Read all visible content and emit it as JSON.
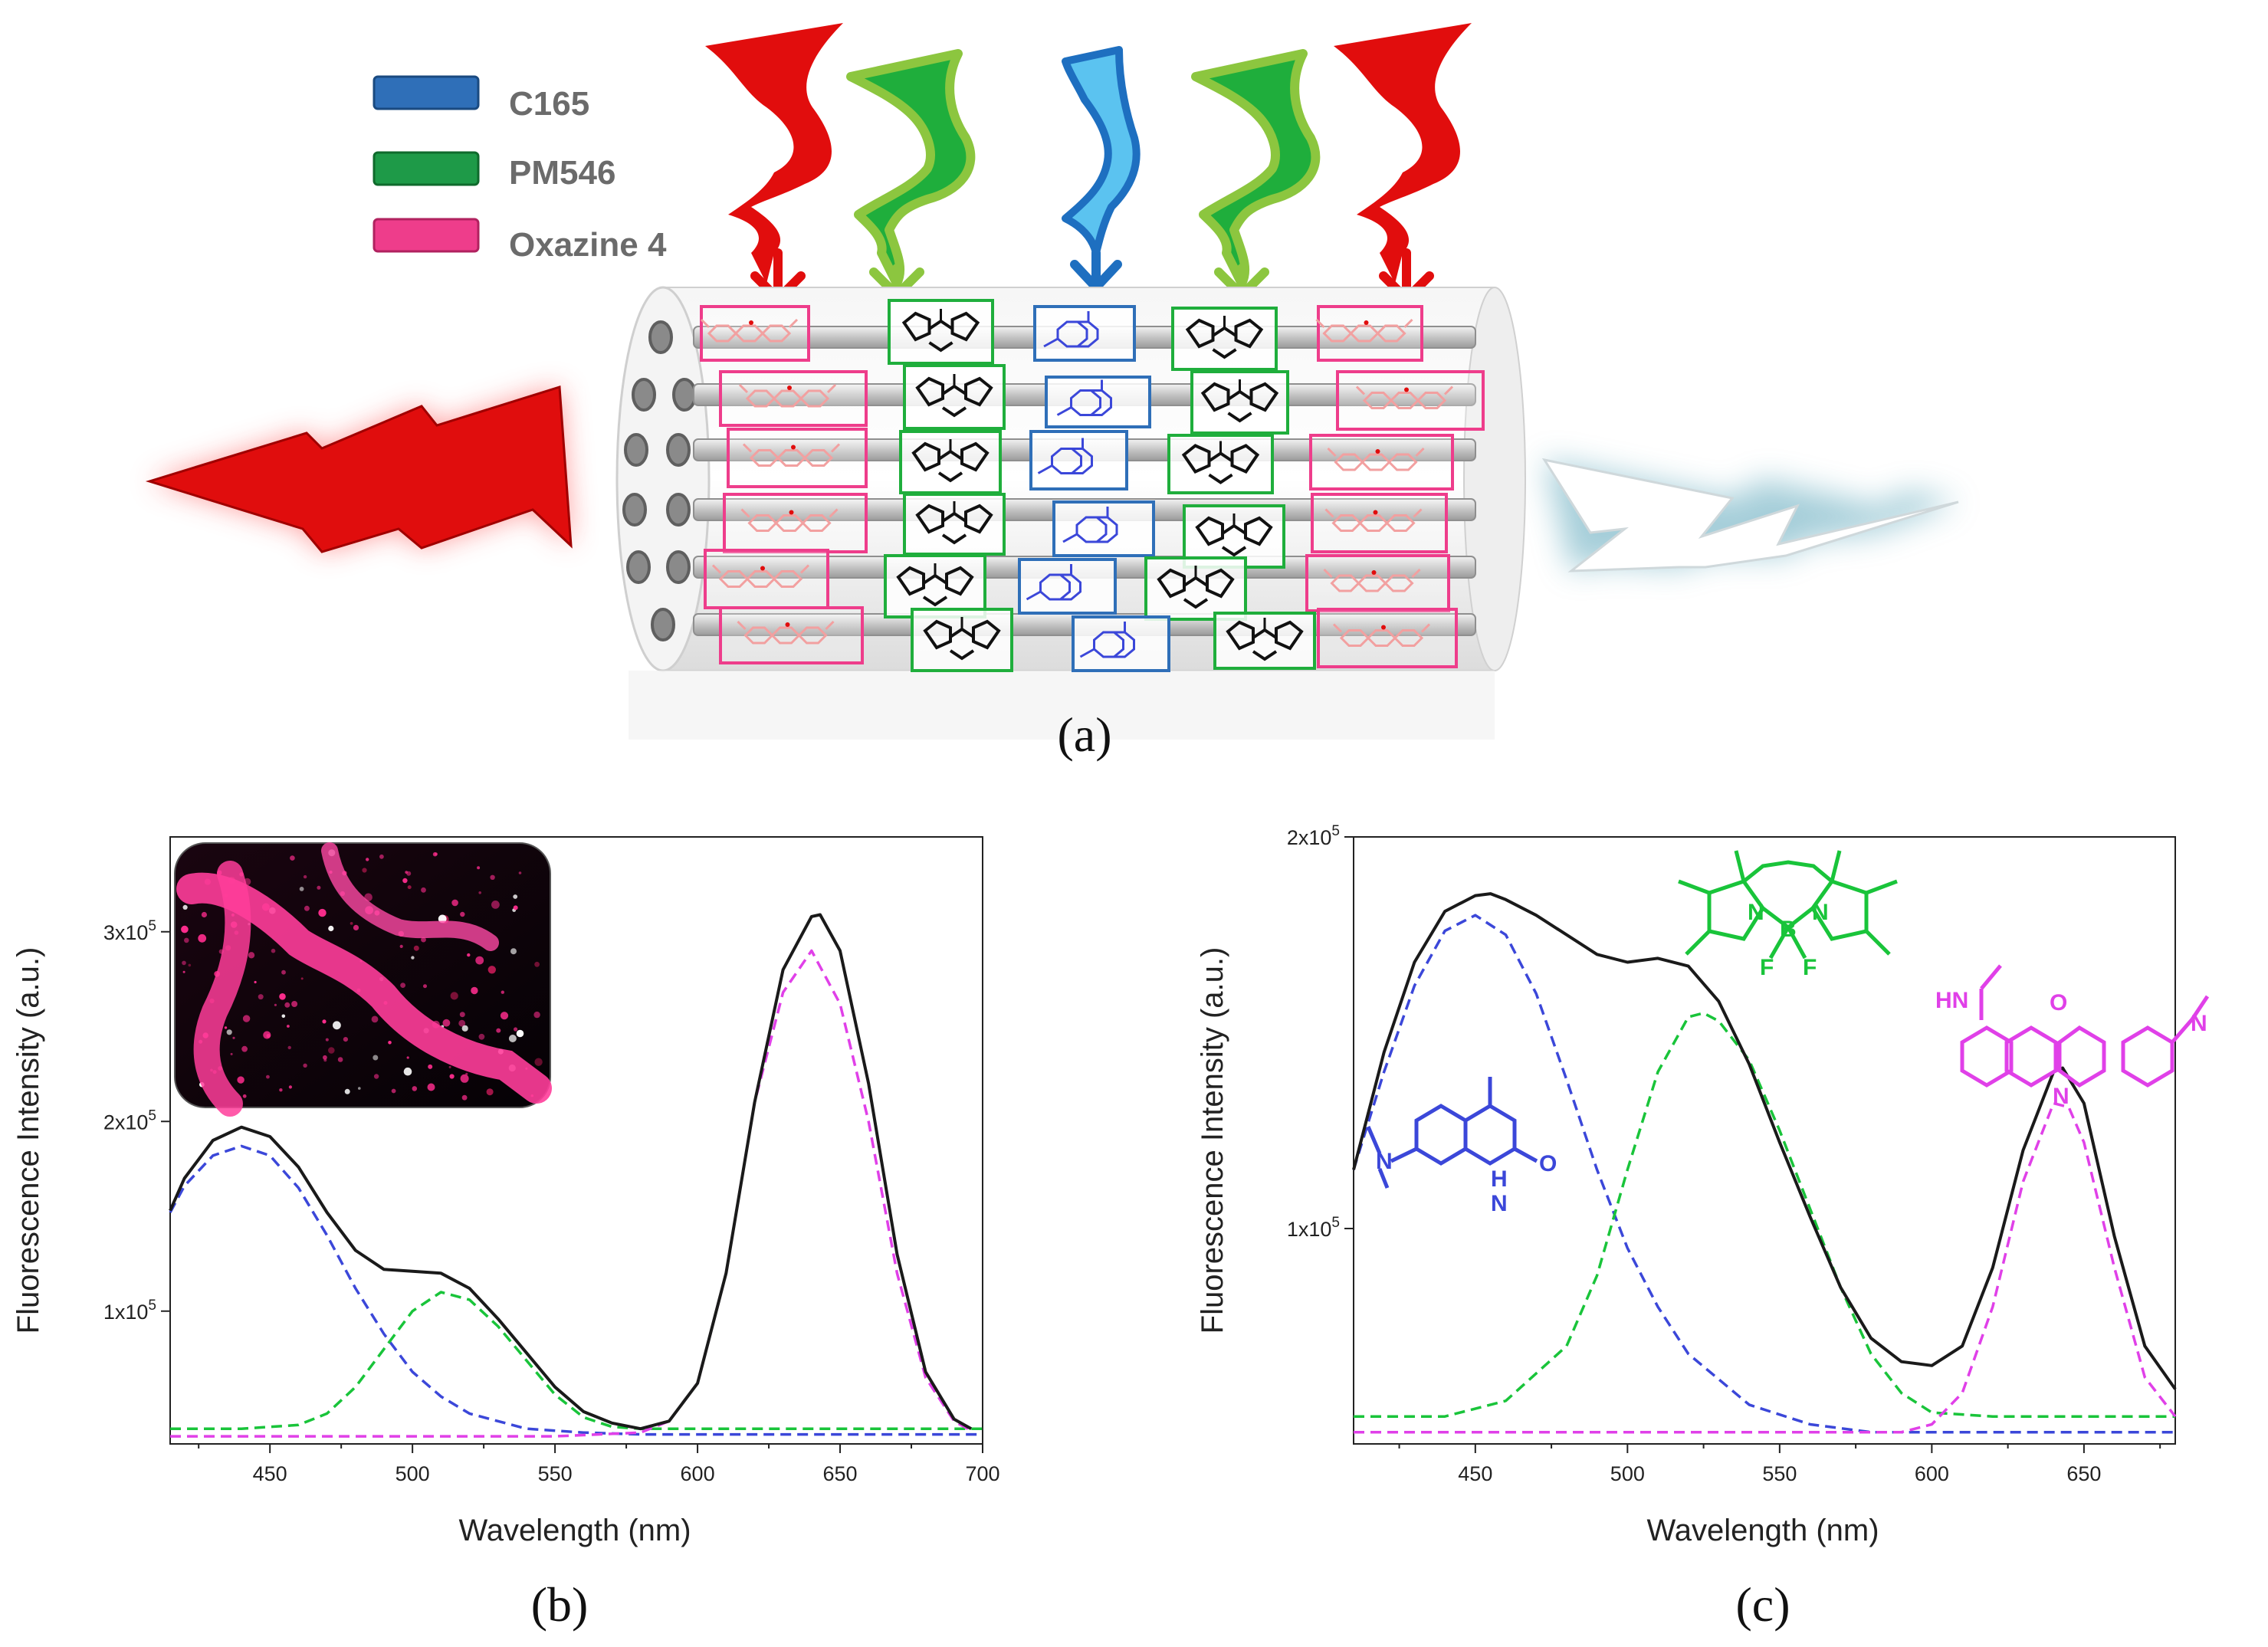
{
  "legend": [
    {
      "label": "C165",
      "color": "#2f6fb8"
    },
    {
      "label": "PM546",
      "color": "#1e9a48"
    },
    {
      "label": "Oxazine 4",
      "color": "#ee3d8b"
    }
  ],
  "panel_labels": {
    "a": "(a)",
    "b": "(b)",
    "c": "(c)"
  },
  "molecule_labels": {
    "bodipy": {
      "b": "B",
      "n1": "N",
      "n2": "N",
      "f1": "F",
      "f2": "F"
    },
    "oxazine": {
      "hn": "HN",
      "o": "O",
      "n_ring": "N",
      "n_imine": "N"
    },
    "coumarin": {
      "n_amine": "N",
      "nh": "H",
      "n_ring": "N",
      "o": "O"
    }
  },
  "colors": {
    "red": "#e10d0d",
    "green": "#1fae3c",
    "lightgreen": "#8cc63f",
    "blue": "#1e88d8",
    "total": "#1a1a1a",
    "c165": "#3b47d9",
    "pm546": "#19c43a",
    "oxazine": "#e040e8",
    "tube": "#d8d8d8"
  },
  "chart_data": [
    {
      "type": "line",
      "panel": "b",
      "xlabel": "Wavelength (nm)",
      "ylabel": "Fluorescence Intensity (a.u.)",
      "xlim": [
        415,
        700
      ],
      "ylim": [
        30000,
        350000
      ],
      "xticks": [
        450,
        500,
        550,
        600,
        650,
        700
      ],
      "xtick_labels": [
        "450",
        "500",
        "550",
        "600",
        "650",
        "700"
      ],
      "yticks": [
        100000,
        200000,
        300000
      ],
      "ytick_labels": [
        {
          "mant": "1x10",
          "exp": "5"
        },
        {
          "mant": "2x10",
          "exp": "5"
        },
        {
          "mant": "3x10",
          "exp": "5"
        }
      ],
      "baseline": 35000,
      "series": [
        {
          "name": "C165",
          "style": "dashed",
          "color": "#3b47d9",
          "x": [
            415,
            420,
            430,
            440,
            450,
            460,
            470,
            480,
            490,
            500,
            510,
            520,
            540,
            560,
            580,
            600,
            650,
            700
          ],
          "y": [
            152000,
            166000,
            182000,
            187000,
            182000,
            165000,
            140000,
            112000,
            88000,
            68000,
            55000,
            46000,
            38000,
            36000,
            35000,
            35000,
            35000,
            35000
          ]
        },
        {
          "name": "PM546",
          "style": "dashed",
          "color": "#19c43a",
          "x": [
            415,
            440,
            460,
            470,
            480,
            490,
            500,
            510,
            520,
            530,
            540,
            550,
            560,
            570,
            580,
            600,
            650,
            700
          ],
          "y": [
            38000,
            38000,
            40000,
            46000,
            60000,
            80000,
            100000,
            110000,
            106000,
            92000,
            74000,
            56000,
            44000,
            39000,
            38000,
            38000,
            38000,
            38000
          ]
        },
        {
          "name": "Oxazine 4",
          "style": "dashed",
          "color": "#e040e8",
          "x": [
            415,
            550,
            580,
            590,
            600,
            610,
            620,
            630,
            640,
            650,
            660,
            670,
            680,
            690,
            696
          ],
          "y": [
            34000,
            34000,
            36000,
            42000,
            62000,
            120000,
            210000,
            268000,
            290000,
            262000,
            200000,
            120000,
            65000,
            42000,
            37000
          ]
        },
        {
          "name": "Total",
          "style": "solid",
          "color": "#1a1a1a",
          "x": [
            415,
            420,
            430,
            440,
            450,
            460,
            470,
            480,
            490,
            500,
            510,
            520,
            530,
            540,
            550,
            560,
            570,
            580,
            590,
            600,
            610,
            620,
            630,
            640,
            643,
            650,
            660,
            670,
            680,
            690,
            696
          ],
          "y": [
            153000,
            170000,
            190000,
            197000,
            192000,
            176000,
            152000,
            132000,
            122000,
            121000,
            120000,
            112000,
            96000,
            78000,
            60000,
            47000,
            41000,
            38000,
            42000,
            62000,
            120000,
            210000,
            280000,
            308000,
            309000,
            290000,
            220000,
            130000,
            68000,
            43000,
            38000
          ]
        }
      ]
    },
    {
      "type": "line",
      "panel": "c",
      "xlabel": "Wavelength (nm)",
      "ylabel": "Fluorescence Intensity (a.u.)",
      "xlim": [
        410,
        680
      ],
      "ylim": [
        45000,
        200000
      ],
      "xticks": [
        450,
        500,
        550,
        600,
        650
      ],
      "xtick_labels": [
        "450",
        "500",
        "550",
        "600",
        "650"
      ],
      "yticks": [
        100000,
        200000
      ],
      "ytick_labels": [
        {
          "mant": "1x10",
          "exp": "5"
        },
        {
          "mant": "2x10",
          "exp": "5"
        }
      ],
      "series": [
        {
          "name": "C165",
          "style": "dashed",
          "color": "#3b47d9",
          "x": [
            410,
            420,
            430,
            440,
            450,
            460,
            470,
            480,
            490,
            500,
            510,
            520,
            540,
            560,
            580,
            600,
            680
          ],
          "y": [
            115000,
            140000,
            162000,
            176000,
            180000,
            175000,
            160000,
            138000,
            115000,
            95000,
            80000,
            68000,
            55000,
            50000,
            48000,
            48000,
            48000
          ]
        },
        {
          "name": "PM546",
          "style": "dashed",
          "color": "#19c43a",
          "x": [
            410,
            440,
            460,
            480,
            490,
            500,
            510,
            520,
            525,
            530,
            540,
            550,
            560,
            570,
            580,
            590,
            600,
            620,
            680
          ],
          "y": [
            52000,
            52000,
            56000,
            70000,
            88000,
            115000,
            140000,
            154000,
            155000,
            153000,
            143000,
            125000,
            105000,
            85000,
            68000,
            58000,
            53000,
            52000,
            52000
          ]
        },
        {
          "name": "Oxazine 4",
          "style": "dashed",
          "color": "#e040e8",
          "x": [
            410,
            590,
            600,
            610,
            620,
            630,
            640,
            645,
            650,
            660,
            670,
            680
          ],
          "y": [
            48000,
            48000,
            50000,
            58000,
            80000,
            112000,
            132000,
            131000,
            122000,
            90000,
            62000,
            52000
          ]
        },
        {
          "name": "Total",
          "style": "solid",
          "color": "#1a1a1a",
          "x": [
            410,
            420,
            430,
            440,
            450,
            455,
            460,
            470,
            480,
            490,
            500,
            510,
            520,
            530,
            540,
            550,
            560,
            570,
            580,
            590,
            600,
            610,
            620,
            630,
            640,
            643,
            650,
            660,
            670,
            680
          ],
          "y": [
            115000,
            145000,
            168000,
            181000,
            185000,
            185500,
            184000,
            180000,
            175000,
            170000,
            168000,
            169000,
            167000,
            158000,
            142000,
            122000,
            103000,
            85000,
            72000,
            66000,
            65000,
            70000,
            90000,
            120000,
            140000,
            141000,
            132000,
            98000,
            70000,
            59000
          ]
        }
      ]
    }
  ]
}
